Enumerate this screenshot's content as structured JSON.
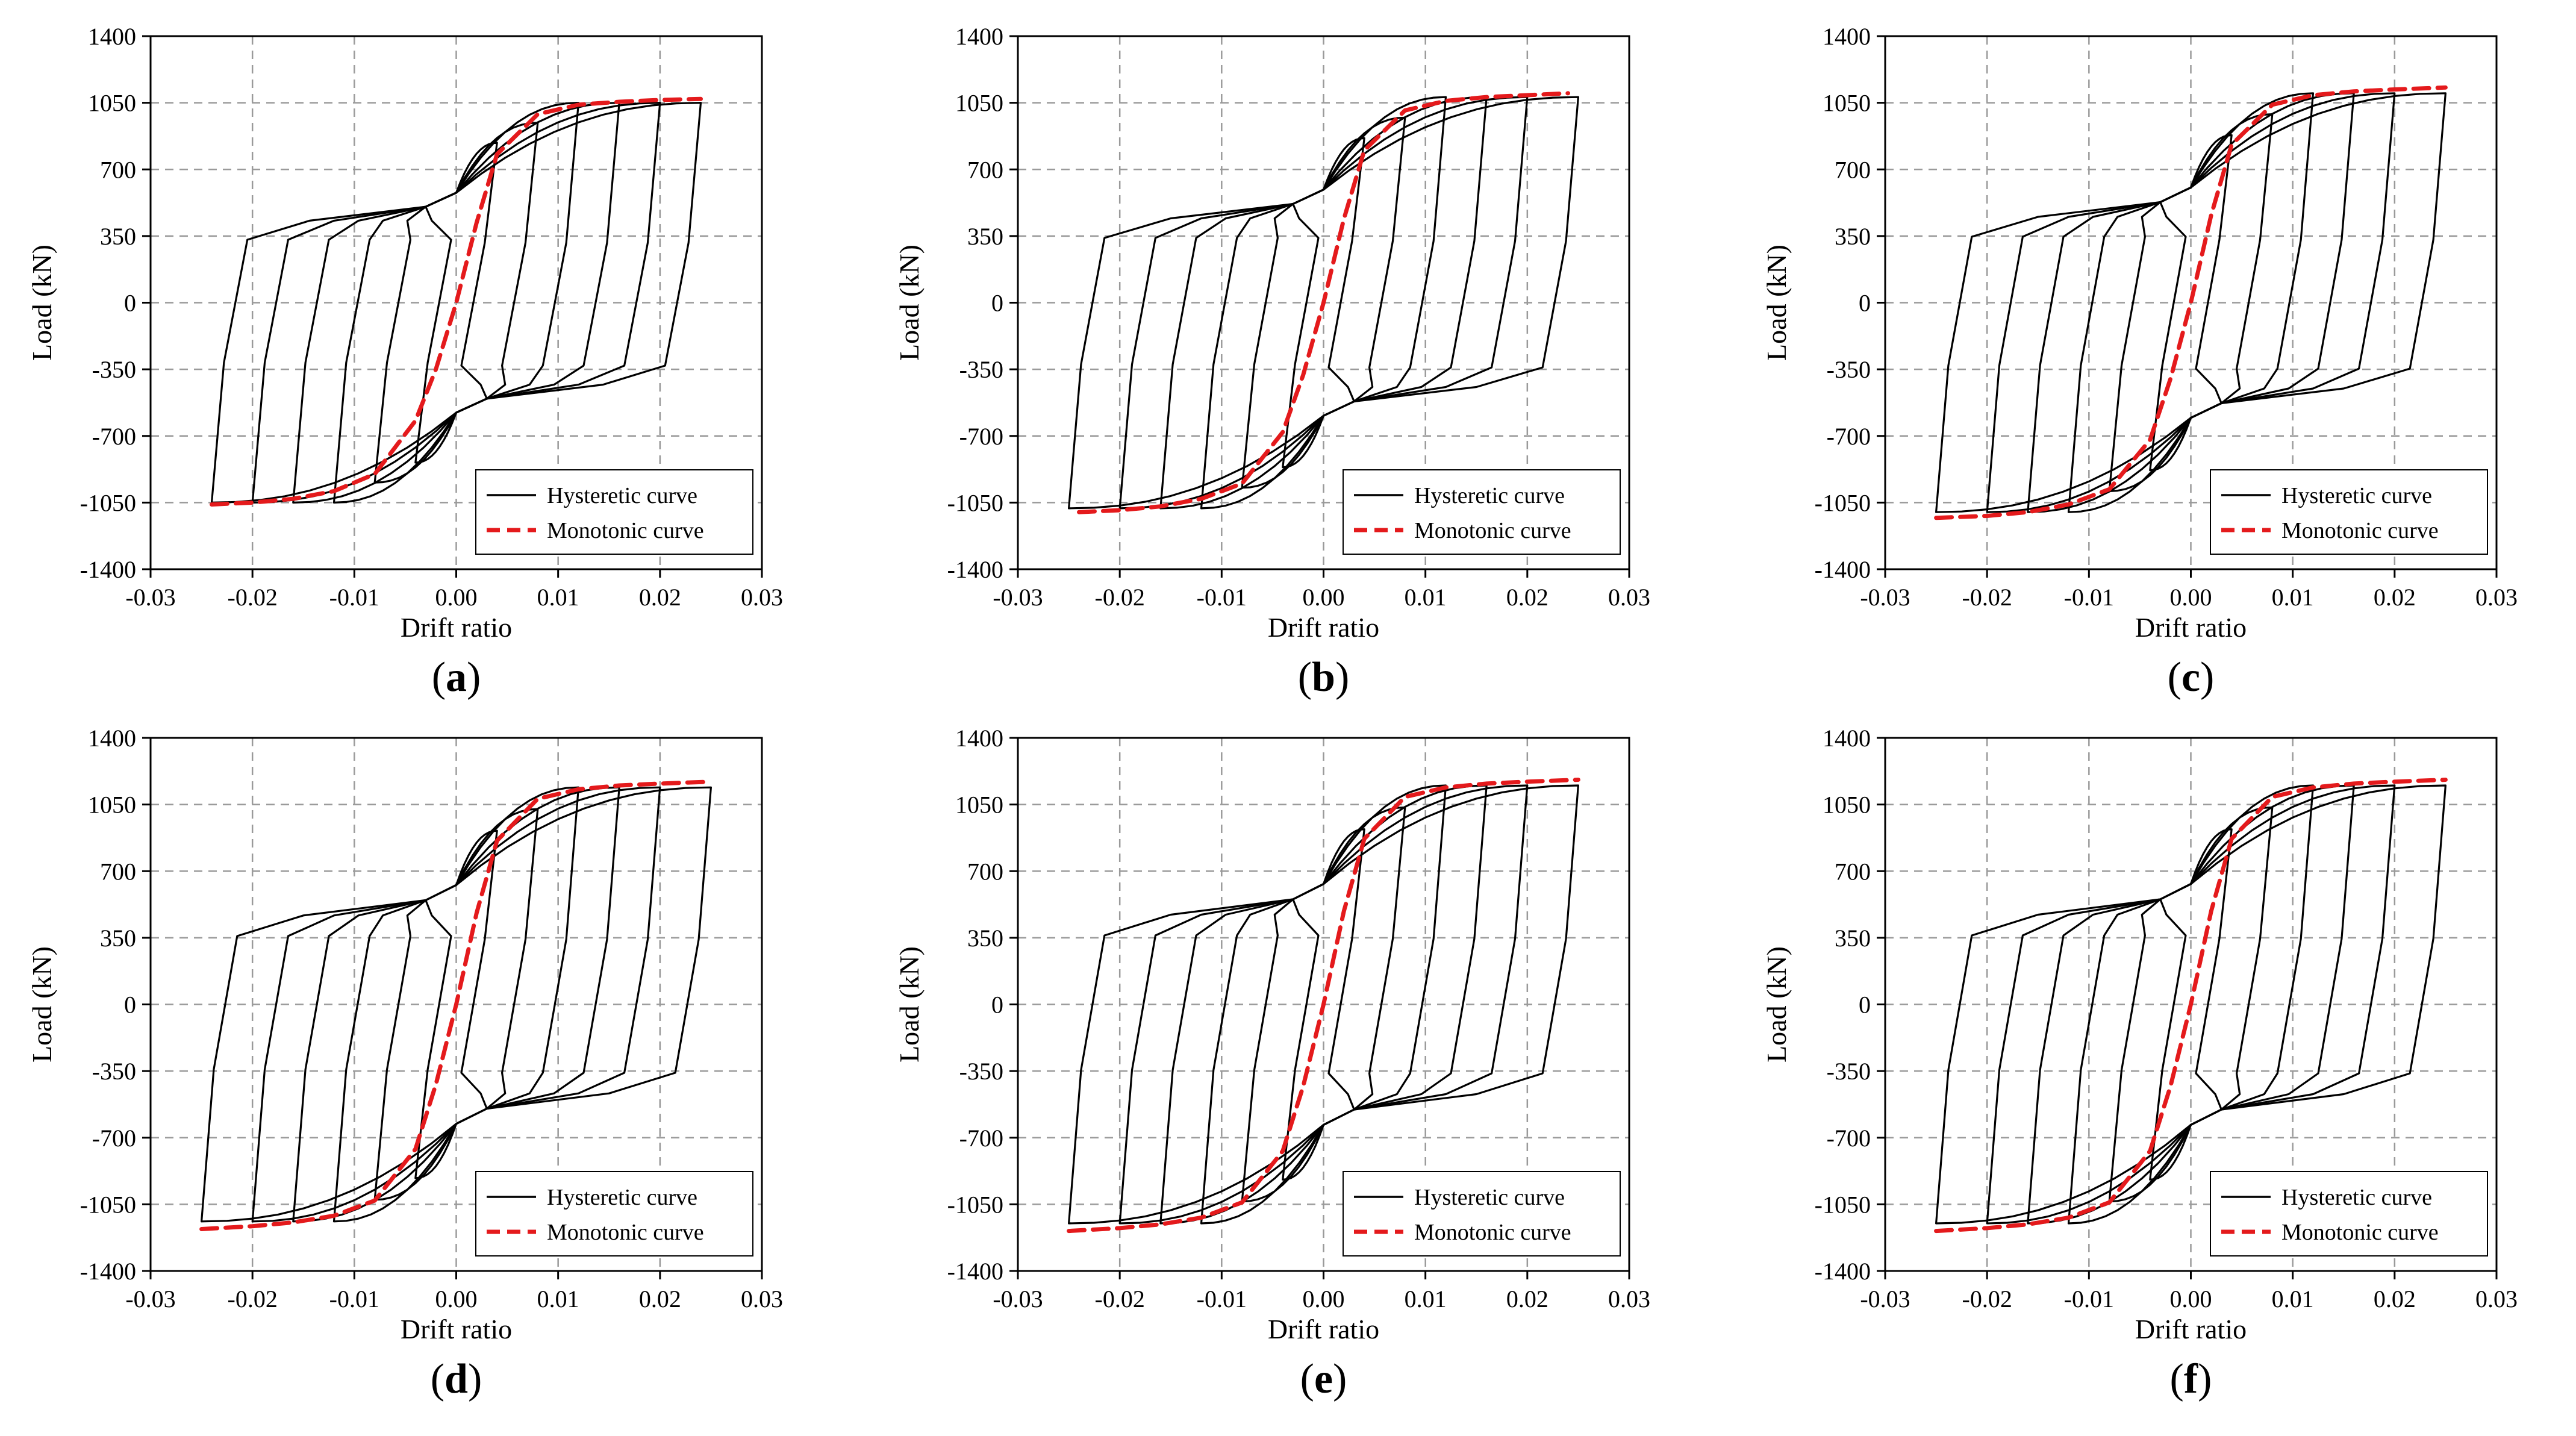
{
  "chart_data": [
    {
      "panel": "a",
      "type": "line",
      "xlabel": "Drift ratio",
      "ylabel": "Load (kN)",
      "xlim": [
        -0.03,
        0.03
      ],
      "ylim": [
        -1400,
        1400
      ],
      "xticks": [
        "-0.03",
        "-0.02",
        "-0.01",
        "0.00",
        "0.01",
        "0.02",
        "0.03"
      ],
      "yticks": [
        "-1400",
        "-1050",
        "-700",
        "-350",
        "0",
        "350",
        "700",
        "1050",
        "1400"
      ],
      "legend": [
        "Hysteretic curve",
        "Monotonic curve"
      ],
      "peak_load": 1050,
      "cycle_drifts": [
        0.004,
        0.008,
        0.012,
        0.016,
        0.02,
        0.024
      ],
      "x": [
        -0.024,
        -0.02,
        -0.016,
        -0.012,
        -0.008,
        -0.004,
        -0.002,
        0.0,
        0.002,
        0.004,
        0.008,
        0.012,
        0.016,
        0.02,
        0.024
      ],
      "series": [
        {
          "name": "Hysteretic curve",
          "envelope_pos": [
            1050
          ],
          "envelope_neg": [
            -1050
          ]
        },
        {
          "name": "Monotonic curve",
          "values": [
            -1060,
            -1050,
            -1030,
            -990,
            -900,
            -620,
            -350,
            0,
            420,
            780,
            990,
            1040,
            1055,
            1065,
            1070
          ]
        }
      ]
    },
    {
      "panel": "b",
      "type": "line",
      "xlabel": "Drift ratio",
      "ylabel": "Load (kN)",
      "xlim": [
        -0.03,
        0.03
      ],
      "ylim": [
        -1400,
        1400
      ],
      "xticks": [
        "-0.03",
        "-0.02",
        "-0.01",
        "0.00",
        "0.01",
        "0.02",
        "0.03"
      ],
      "yticks": [
        "-1400",
        "-1050",
        "-700",
        "-350",
        "0",
        "350",
        "700",
        "1050",
        "1400"
      ],
      "legend": [
        "Hysteretic curve",
        "Monotonic curve"
      ],
      "peak_load": 1080,
      "cycle_drifts": [
        0.004,
        0.008,
        0.012,
        0.016,
        0.02,
        0.025
      ],
      "x": [
        -0.024,
        -0.02,
        -0.016,
        -0.012,
        -0.008,
        -0.004,
        -0.002,
        0.0,
        0.002,
        0.004,
        0.008,
        0.012,
        0.016,
        0.02,
        0.024
      ],
      "series": [
        {
          "name": "Hysteretic curve",
          "envelope_pos": [
            1080
          ],
          "envelope_neg": [
            -1080
          ]
        },
        {
          "name": "Monotonic curve",
          "values": [
            -1100,
            -1090,
            -1070,
            -1030,
            -950,
            -680,
            -380,
            0,
            440,
            800,
            1010,
            1060,
            1080,
            1090,
            1100
          ]
        }
      ]
    },
    {
      "panel": "c",
      "type": "line",
      "xlabel": "Drift ratio",
      "ylabel": "Load (kN)",
      "xlim": [
        -0.03,
        0.03
      ],
      "ylim": [
        -1400,
        1400
      ],
      "xticks": [
        "-0.03",
        "-0.02",
        "-0.01",
        "0.00",
        "0.01",
        "0.02",
        "0.03"
      ],
      "yticks": [
        "-1400",
        "-1050",
        "-700",
        "-350",
        "0",
        "350",
        "700",
        "1050",
        "1400"
      ],
      "legend": [
        "Hysteretic curve",
        "Monotonic curve"
      ],
      "peak_load": 1100,
      "cycle_drifts": [
        0.004,
        0.008,
        0.012,
        0.016,
        0.02,
        0.025
      ],
      "x": [
        -0.025,
        -0.02,
        -0.016,
        -0.012,
        -0.008,
        -0.004,
        -0.002,
        0.0,
        0.002,
        0.004,
        0.008,
        0.012,
        0.016,
        0.02,
        0.025
      ],
      "series": [
        {
          "name": "Hysteretic curve",
          "envelope_pos": [
            1100
          ],
          "envelope_neg": [
            -1100
          ]
        },
        {
          "name": "Monotonic curve",
          "values": [
            -1130,
            -1120,
            -1100,
            -1060,
            -980,
            -720,
            -400,
            0,
            460,
            830,
            1040,
            1090,
            1110,
            1120,
            1130
          ]
        }
      ]
    },
    {
      "panel": "d",
      "type": "line",
      "xlabel": "Drift ratio",
      "ylabel": "Load (kN)",
      "xlim": [
        -0.03,
        0.03
      ],
      "ylim": [
        -1400,
        1400
      ],
      "xticks": [
        "-0.03",
        "-0.02",
        "-0.01",
        "0.00",
        "0.01",
        "0.02",
        "0.03"
      ],
      "yticks": [
        "-1400",
        "-1050",
        "-700",
        "-350",
        "0",
        "350",
        "700",
        "1050",
        "1400"
      ],
      "legend": [
        "Hysteretic curve",
        "Monotonic curve"
      ],
      "peak_load": 1140,
      "cycle_drifts": [
        0.004,
        0.008,
        0.012,
        0.016,
        0.02,
        0.025
      ],
      "x": [
        -0.025,
        -0.02,
        -0.016,
        -0.012,
        -0.008,
        -0.004,
        -0.002,
        0.0,
        0.002,
        0.004,
        0.008,
        0.012,
        0.016,
        0.02,
        0.025
      ],
      "series": [
        {
          "name": "Hysteretic curve",
          "envelope_pos": [
            1140
          ],
          "envelope_neg": [
            -1140
          ]
        },
        {
          "name": "Monotonic curve",
          "values": [
            -1180,
            -1165,
            -1145,
            -1110,
            -1030,
            -760,
            -420,
            0,
            480,
            860,
            1080,
            1130,
            1150,
            1160,
            1170
          ]
        }
      ]
    },
    {
      "panel": "e",
      "type": "line",
      "xlabel": "Drift ratio",
      "ylabel": "Load (kN)",
      "xlim": [
        -0.03,
        0.03
      ],
      "ylim": [
        -1400,
        1400
      ],
      "xticks": [
        "-0.03",
        "-0.02",
        "-0.01",
        "0.00",
        "0.01",
        "0.02",
        "0.03"
      ],
      "yticks": [
        "-1400",
        "-1050",
        "-700",
        "-350",
        "0",
        "350",
        "700",
        "1050",
        "1400"
      ],
      "legend": [
        "Hysteretic curve",
        "Monotonic curve"
      ],
      "peak_load": 1150,
      "cycle_drifts": [
        0.004,
        0.008,
        0.012,
        0.016,
        0.02,
        0.025
      ],
      "x": [
        -0.025,
        -0.02,
        -0.016,
        -0.012,
        -0.008,
        -0.004,
        -0.002,
        0.0,
        0.002,
        0.004,
        0.008,
        0.012,
        0.016,
        0.02,
        0.025
      ],
      "series": [
        {
          "name": "Hysteretic curve",
          "envelope_pos": [
            1150
          ],
          "envelope_neg": [
            -1150
          ]
        },
        {
          "name": "Monotonic curve",
          "values": [
            -1190,
            -1175,
            -1155,
            -1120,
            -1040,
            -770,
            -430,
            0,
            490,
            870,
            1090,
            1140,
            1160,
            1170,
            1180
          ]
        }
      ]
    },
    {
      "panel": "f",
      "type": "line",
      "xlabel": "Drift ratio",
      "ylabel": "Load (kN)",
      "xlim": [
        -0.03,
        0.03
      ],
      "ylim": [
        -1400,
        1400
      ],
      "xticks": [
        "-0.03",
        "-0.02",
        "-0.01",
        "0.00",
        "0.01",
        "0.02",
        "0.03"
      ],
      "yticks": [
        "-1400",
        "-1050",
        "-700",
        "-350",
        "0",
        "350",
        "700",
        "1050",
        "1400"
      ],
      "legend": [
        "Hysteretic curve",
        "Monotonic curve"
      ],
      "peak_load": 1150,
      "cycle_drifts": [
        0.004,
        0.008,
        0.012,
        0.016,
        0.02,
        0.025
      ],
      "x": [
        -0.025,
        -0.02,
        -0.016,
        -0.012,
        -0.008,
        -0.004,
        -0.002,
        0.0,
        0.002,
        0.004,
        0.008,
        0.012,
        0.016,
        0.02,
        0.025
      ],
      "series": [
        {
          "name": "Hysteretic curve",
          "envelope_pos": [
            1150
          ],
          "envelope_neg": [
            -1150
          ]
        },
        {
          "name": "Monotonic curve",
          "values": [
            -1190,
            -1175,
            -1155,
            -1120,
            -1040,
            -770,
            -430,
            0,
            490,
            870,
            1090,
            1140,
            1160,
            1170,
            1180
          ]
        }
      ]
    }
  ],
  "captions": [
    "a",
    "b",
    "c",
    "d",
    "e",
    "f"
  ],
  "colors": {
    "hysteretic": "#000000",
    "monotonic": "#e41a1c",
    "grid": "#9a9a9a"
  }
}
